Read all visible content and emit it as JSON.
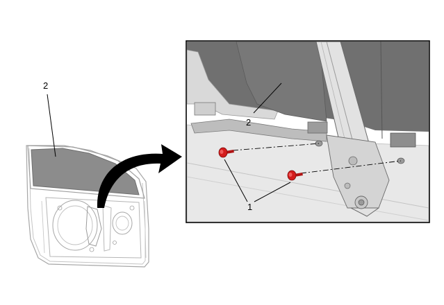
{
  "callouts": {
    "door_glass_overview": "2",
    "door_glass_detail": "2",
    "bolts": "1"
  },
  "colors": {
    "glass_grey": "#8a8a8a",
    "panel_dark": "#6c6c6c",
    "bolt_red": "#d41c1c",
    "frame": "#000000",
    "line_art": "#9a9a9a"
  }
}
